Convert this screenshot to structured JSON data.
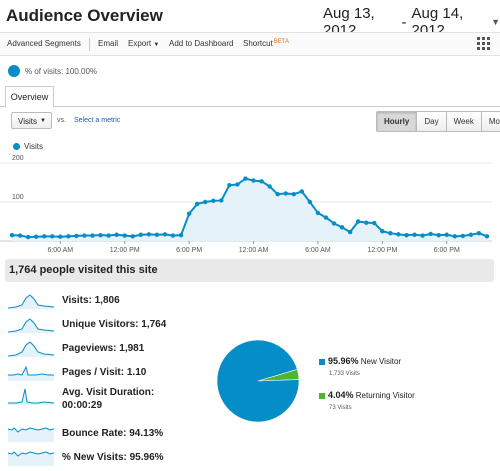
{
  "header": {
    "title": "Audience Overview",
    "date_start": "Aug 13, 2012",
    "date_sep": "-",
    "date_end": "Aug 14, 2012"
  },
  "toolbar": {
    "advanced_segments": "Advanced Segments",
    "email": "Email",
    "export": "Export",
    "add_to_dashboard": "Add to Dashboard",
    "shortcut": "Shortcut",
    "beta": "BETA"
  },
  "segment": {
    "label": "% of visits: 100.00%"
  },
  "tabs": {
    "overview": "Overview"
  },
  "controls": {
    "metric": "Visits",
    "vs": "vs.",
    "select_metric": "Select a metric",
    "time_buttons": [
      "Hourly",
      "Day",
      "Week",
      "Month"
    ],
    "active_time": "Hourly"
  },
  "legend": {
    "label": "Visits"
  },
  "chart_data": {
    "type": "area",
    "series": [
      {
        "name": "Visits",
        "values": [
          15,
          14,
          10,
          11,
          12,
          12,
          11,
          12,
          13,
          14,
          14,
          15,
          14,
          16,
          14,
          12,
          16,
          17,
          16,
          17,
          14,
          15,
          70,
          95,
          100,
          103,
          104,
          143,
          145,
          160,
          155,
          153,
          140,
          120,
          122,
          120,
          127,
          100,
          72,
          60,
          45,
          35,
          23,
          50,
          47,
          46,
          25,
          20,
          17,
          15,
          16,
          14,
          18,
          15,
          16,
          12,
          13,
          16,
          20,
          12
        ]
      }
    ],
    "yticks": [
      "200",
      "100"
    ],
    "ylim": [
      0,
      200
    ],
    "xticks": [
      "6:00 AM",
      "12:00 PM",
      "6:00 PM",
      "12:00 AM",
      "6:00 AM",
      "12:00 PM",
      "6:00 PM"
    ]
  },
  "summary": {
    "text": "1,764 people visited this site"
  },
  "metrics": [
    {
      "label": "Visits:",
      "value": "1,806"
    },
    {
      "label": "Unique Visitors:",
      "value": "1,764"
    },
    {
      "label": "Pageviews:",
      "value": "1,981"
    },
    {
      "label": "Pages / Visit:",
      "value": "1.10"
    },
    {
      "label": "Avg. Visit Duration:",
      "value": "00:00:29"
    },
    {
      "label": "Bounce Rate:",
      "value": "94.13%"
    },
    {
      "label": "% New Visits:",
      "value": "95.96%"
    }
  ],
  "pie": {
    "slices": [
      {
        "name": "New Visitor",
        "percent": "95.96%",
        "fraction": 0.9596,
        "visits": "1,733 Visits",
        "color": "#058dc7"
      },
      {
        "name": "Returning Visitor",
        "percent": "4.04%",
        "fraction": 0.0404,
        "visits": "73 Visits",
        "color": "#50b432"
      }
    ]
  },
  "colors": {
    "accent": "#058dc7",
    "fill": "#e6f2f9",
    "returning": "#50b432"
  }
}
